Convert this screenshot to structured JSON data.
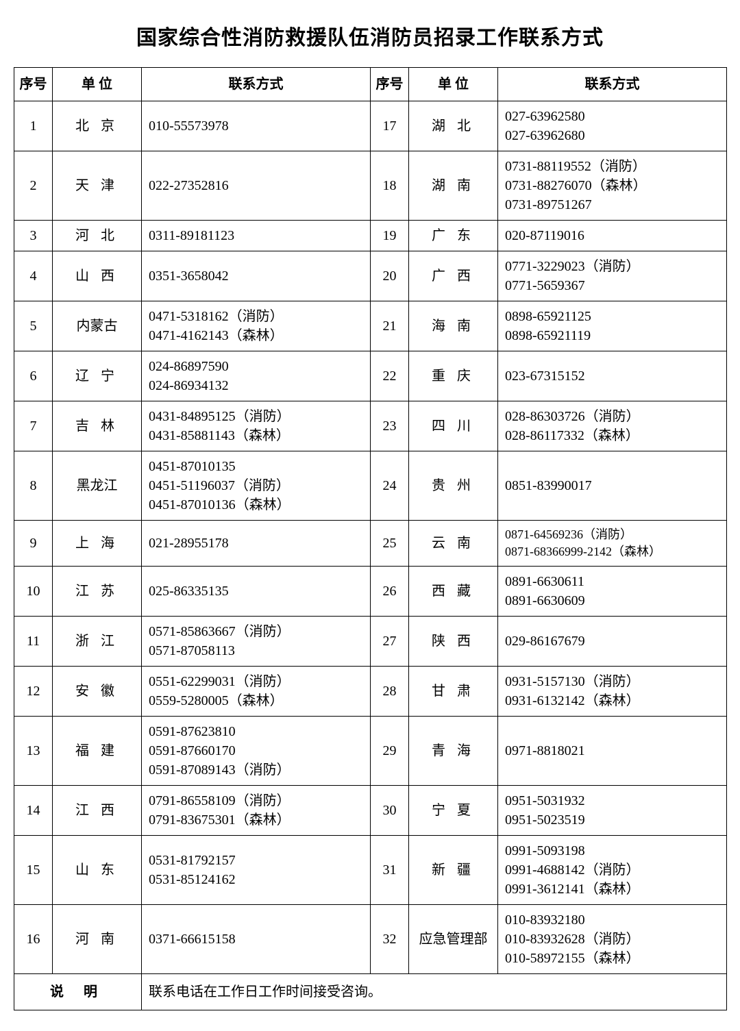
{
  "title": "国家综合性消防救援队伍消防员招录工作联系方式",
  "headers": {
    "seq": "序号",
    "unit": "单 位",
    "contact": "联系方式"
  },
  "rows": [
    {
      "seq": "1",
      "unit": "北 京",
      "contact": [
        "010-55573978"
      ]
    },
    {
      "seq": "2",
      "unit": "天 津",
      "contact": [
        "022-27352816"
      ]
    },
    {
      "seq": "3",
      "unit": "河 北",
      "contact": [
        "0311-89181123"
      ]
    },
    {
      "seq": "4",
      "unit": "山 西",
      "contact": [
        "0351-3658042"
      ]
    },
    {
      "seq": "5",
      "unit": "内蒙古",
      "contact": [
        "0471-5318162（消防）",
        "0471-4162143（森林）"
      ],
      "nospace": true
    },
    {
      "seq": "6",
      "unit": "辽 宁",
      "contact": [
        "024-86897590",
        "024-86934132"
      ]
    },
    {
      "seq": "7",
      "unit": "吉 林",
      "contact": [
        "0431-84895125（消防）",
        "0431-85881143（森林）"
      ]
    },
    {
      "seq": "8",
      "unit": "黑龙江",
      "contact": [
        "0451-87010135",
        "0451-51196037（消防）",
        "0451-87010136（森林）"
      ],
      "nospace": true
    },
    {
      "seq": "9",
      "unit": "上 海",
      "contact": [
        "021-28955178"
      ]
    },
    {
      "seq": "10",
      "unit": "江 苏",
      "contact": [
        "025-86335135"
      ]
    },
    {
      "seq": "11",
      "unit": "浙 江",
      "contact": [
        "0571-85863667（消防）",
        "0571-87058113"
      ]
    },
    {
      "seq": "12",
      "unit": "安 徽",
      "contact": [
        "0551-62299031（消防）",
        "0559-5280005（森林）"
      ]
    },
    {
      "seq": "13",
      "unit": "福 建",
      "contact": [
        "0591-87623810",
        "0591-87660170",
        "0591-87089143（消防）"
      ]
    },
    {
      "seq": "14",
      "unit": "江 西",
      "contact": [
        "0791-86558109（消防）",
        "0791-83675301（森林）"
      ]
    },
    {
      "seq": "15",
      "unit": "山 东",
      "contact": [
        "0531-81792157",
        "0531-85124162"
      ]
    },
    {
      "seq": "16",
      "unit": "河 南",
      "contact": [
        "0371-66615158"
      ]
    },
    {
      "seq": "17",
      "unit": "湖 北",
      "contact": [
        "027-63962580",
        "027-63962680"
      ]
    },
    {
      "seq": "18",
      "unit": "湖 南",
      "contact": [
        "0731-88119552（消防）",
        "0731-88276070（森林）",
        "0731-89751267"
      ]
    },
    {
      "seq": "19",
      "unit": "广 东",
      "contact": [
        "020-87119016"
      ]
    },
    {
      "seq": "20",
      "unit": "广 西",
      "contact": [
        "0771-3229023（消防）",
        "0771-5659367"
      ]
    },
    {
      "seq": "21",
      "unit": "海 南",
      "contact": [
        "0898-65921125",
        "0898-65921119"
      ]
    },
    {
      "seq": "22",
      "unit": "重 庆",
      "contact": [
        "023-67315152"
      ]
    },
    {
      "seq": "23",
      "unit": "四 川",
      "contact": [
        "028-86303726（消防）",
        "028-86117332（森林）"
      ]
    },
    {
      "seq": "24",
      "unit": "贵 州",
      "contact": [
        "0851-83990017"
      ]
    },
    {
      "seq": "25",
      "unit": "云 南",
      "contact": [
        "0871-64569236（消防）",
        "0871-68366999-2142（森林）"
      ],
      "small": true
    },
    {
      "seq": "26",
      "unit": "西 藏",
      "contact": [
        "0891-6630611",
        "0891-6630609"
      ]
    },
    {
      "seq": "27",
      "unit": "陕 西",
      "contact": [
        "029-86167679"
      ]
    },
    {
      "seq": "28",
      "unit": "甘 肃",
      "contact": [
        "0931-5157130（消防）",
        "0931-6132142（森林）"
      ]
    },
    {
      "seq": "29",
      "unit": "青 海",
      "contact": [
        "0971-8818021"
      ]
    },
    {
      "seq": "30",
      "unit": "宁 夏",
      "contact": [
        "0951-5031932",
        "0951-5023519"
      ]
    },
    {
      "seq": "31",
      "unit": "新 疆",
      "contact": [
        "0991-5093198",
        "0991-4688142（消防）",
        "0991-3612141（森林）"
      ]
    },
    {
      "seq": "32",
      "unit": "应急管理部",
      "contact": [
        "010-83932180",
        "010-83932628（消防）",
        "010-58972155（森林）"
      ],
      "nospace": true
    }
  ],
  "note": {
    "label": "说 明",
    "text": "联系电话在工作日工作时间接受咨询。"
  },
  "style": {
    "background_color": "#ffffff",
    "border_color": "#000000",
    "title_fontsize": 30,
    "cell_fontsize": 20,
    "font_family": "SimSun"
  }
}
